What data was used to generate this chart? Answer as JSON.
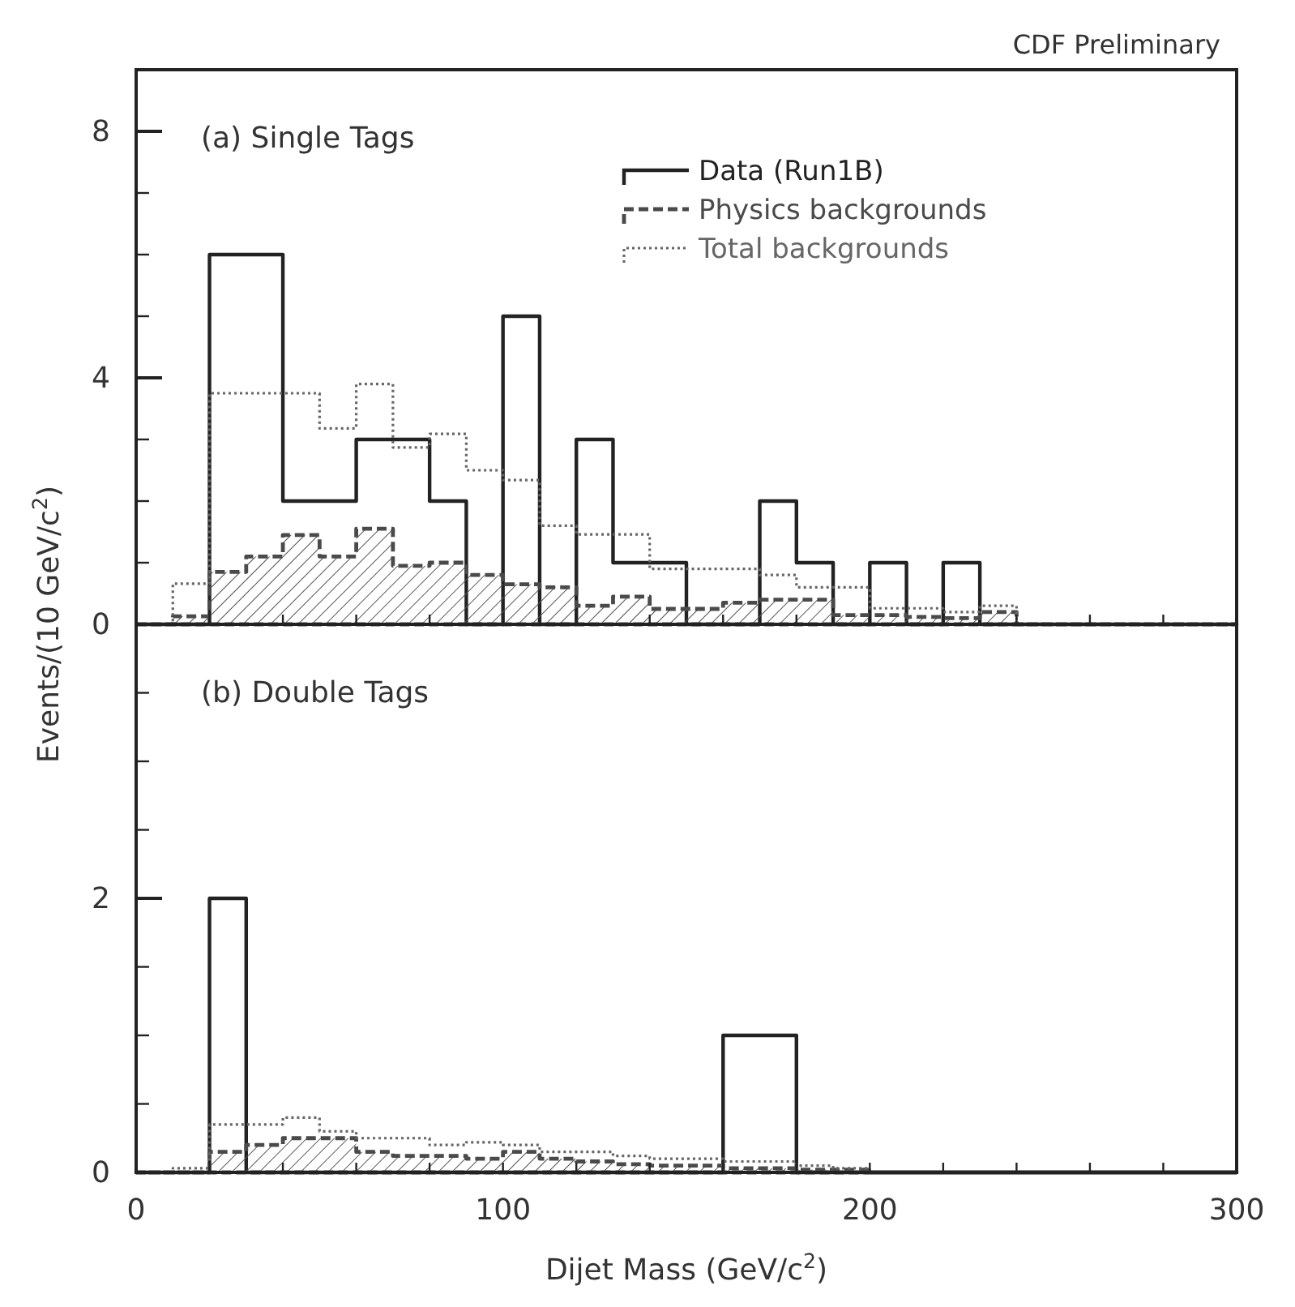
{
  "chart_data": [
    {
      "type": "histogram",
      "title": "(a) Single Tags",
      "ylabel": "Events/(10 GeV/c$^{2}$)",
      "annotations": [
        "CDF Preliminary"
      ],
      "bins": [
        0,
        10,
        20,
        30,
        40,
        50,
        60,
        70,
        80,
        90,
        100,
        110,
        120,
        130,
        140,
        150,
        160,
        170,
        180,
        190,
        200,
        210,
        220,
        230,
        240,
        250,
        260,
        270,
        280,
        290,
        300
      ],
      "xlim": [
        0,
        300
      ],
      "xticks": [
        {
          "value": 0,
          "label": null
        },
        {
          "value": 20,
          "label": null
        },
        {
          "value": 40,
          "label": null
        },
        {
          "value": 60,
          "label": null
        },
        {
          "value": 80,
          "label": null
        },
        {
          "value": 100,
          "label": null
        },
        {
          "value": 120,
          "label": null
        },
        {
          "value": 140,
          "label": null
        },
        {
          "value": 160,
          "label": null
        },
        {
          "value": 180,
          "label": null
        },
        {
          "value": 200,
          "label": null
        },
        {
          "value": 220,
          "label": null
        },
        {
          "value": 240,
          "label": null
        },
        {
          "value": 260,
          "label": null
        },
        {
          "value": 280,
          "label": null
        },
        {
          "value": 300,
          "label": null
        }
      ],
      "ylim": [
        0,
        9
      ],
      "yticks": [
        0,
        {
          "value": 1,
          "label": null
        },
        {
          "value": 2,
          "label": null
        },
        {
          "value": 3,
          "label": null
        },
        4,
        {
          "value": 5,
          "label": null
        },
        {
          "value": 6,
          "label": null
        },
        {
          "value": 7,
          "label": null
        },
        8
      ],
      "tick_labels": "y",
      "legend": "top right",
      "series": [
        {
          "name": "Data (Run1B)",
          "color": "#222222",
          "line_style": "solid",
          "values": [
            0,
            0,
            6,
            6,
            2,
            2,
            3,
            3,
            2,
            0,
            5,
            0,
            3,
            1,
            1,
            0,
            0,
            2,
            1,
            0,
            1,
            0,
            1,
            0,
            0,
            0,
            0,
            0,
            0,
            0
          ]
        },
        {
          "name": "Physics backgrounds",
          "color": "#4a4a4a",
          "line_style": "dashed",
          "values": [
            0,
            0.13,
            0.85,
            1.1,
            1.45,
            1.1,
            1.55,
            0.95,
            1.0,
            0.8,
            0.65,
            0.6,
            0.3,
            0.45,
            0.25,
            0.25,
            0.35,
            0.4,
            0.4,
            0.15,
            0.15,
            0.12,
            0.1,
            0.2,
            0,
            0,
            0,
            0,
            0,
            0
          ]
        },
        {
          "name": "Total backgrounds",
          "color": "#666666",
          "line_style": "dotted",
          "values": [
            0,
            0.66,
            3.75,
            3.75,
            3.75,
            3.18,
            3.9,
            2.87,
            3.09,
            2.5,
            2.34,
            1.6,
            1.46,
            1.46,
            0.9,
            0.9,
            0.9,
            0.8,
            0.6,
            0.6,
            0.26,
            0.26,
            0.2,
            0.3,
            0,
            0,
            0,
            0,
            0,
            0
          ]
        }
      ]
    },
    {
      "type": "histogram",
      "title": "(b) Double Tags",
      "xlabel": "Dijet Mass (GeV/c$^{2}$)",
      "bins": [
        0,
        10,
        20,
        30,
        40,
        50,
        60,
        70,
        80,
        90,
        100,
        110,
        120,
        130,
        140,
        150,
        160,
        170,
        180,
        190,
        200,
        210,
        220,
        230,
        240,
        250,
        260,
        270,
        280,
        290,
        300
      ],
      "xlim": [
        0,
        300
      ],
      "xticks": [
        0,
        {
          "value": 20,
          "label": null
        },
        {
          "value": 40,
          "label": null
        },
        {
          "value": 60,
          "label": null
        },
        {
          "value": 80,
          "label": null
        },
        100,
        {
          "value": 120,
          "label": null
        },
        {
          "value": 140,
          "label": null
        },
        {
          "value": 160,
          "label": null
        },
        {
          "value": 180,
          "label": null
        },
        200,
        {
          "value": 220,
          "label": null
        },
        {
          "value": 240,
          "label": null
        },
        {
          "value": 260,
          "label": null
        },
        {
          "value": 280,
          "label": null
        },
        300
      ],
      "ylim": [
        0,
        4
      ],
      "yticks": [
        0,
        {
          "value": 0.5,
          "label": null
        },
        {
          "value": 1,
          "label": null
        },
        {
          "value": 1.5,
          "label": null
        },
        2,
        {
          "value": 2.5,
          "label": null
        },
        {
          "value": 3,
          "label": null
        },
        {
          "value": 3.5,
          "label": null
        }
      ],
      "series": [
        {
          "color": "#222222",
          "line_style": "solid",
          "values": [
            0,
            0,
            2,
            0,
            0,
            0,
            0,
            0,
            0,
            0,
            0,
            0,
            0,
            0,
            0,
            0,
            1,
            1,
            0,
            0,
            0,
            0,
            0,
            0,
            0,
            0,
            0,
            0,
            0,
            0
          ]
        },
        {
          "color": "#4a4a4a",
          "line_style": "dashed",
          "values": [
            0,
            0,
            0.15,
            0.2,
            0.25,
            0.25,
            0.15,
            0.12,
            0.12,
            0.1,
            0.15,
            0.1,
            0.08,
            0.06,
            0.05,
            0.05,
            0.03,
            0.03,
            0.02,
            0.02,
            0,
            0,
            0,
            0,
            0,
            0,
            0,
            0,
            0,
            0
          ]
        },
        {
          "color": "#666666",
          "line_style": "dotted",
          "values": [
            0,
            0.03,
            0.35,
            0.35,
            0.4,
            0.3,
            0.25,
            0.25,
            0.2,
            0.22,
            0.2,
            0.15,
            0.15,
            0.12,
            0.1,
            0.1,
            0.08,
            0.08,
            0.05,
            0.03,
            0,
            0,
            0,
            0,
            0,
            0,
            0,
            0,
            0,
            0
          ]
        }
      ]
    }
  ]
}
